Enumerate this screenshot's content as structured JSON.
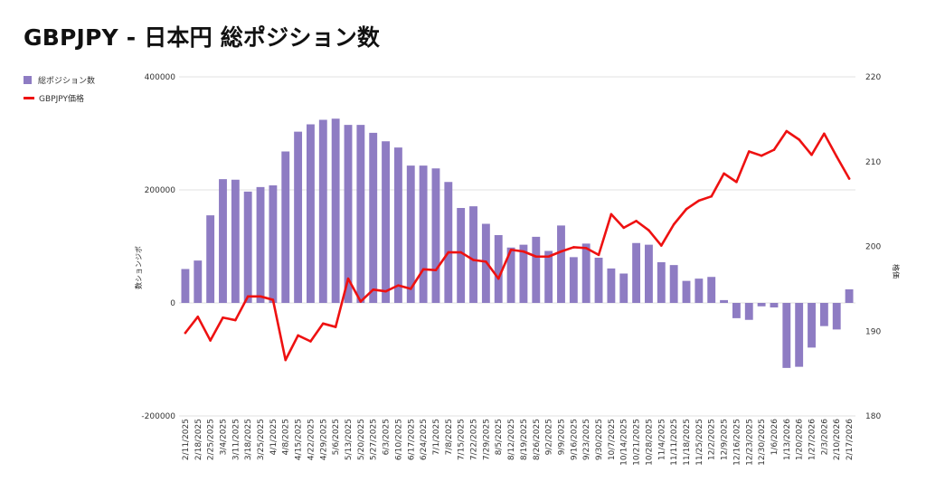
{
  "title": "GBPJPY - 日本円 総ポジション数",
  "legend": {
    "bar_label": "総ポジション数",
    "line_label": "GBPJPY価格"
  },
  "colors": {
    "bar": "#8e7cc3",
    "line": "#ee1111",
    "grid": "#e2e2e2"
  },
  "chart_data": {
    "type": "bar",
    "title": "GBPJPY - 日本円 総ポジション数",
    "categories": [
      "2/11/2025",
      "2/18/2025",
      "2/25/2025",
      "3/4/2025",
      "3/11/2025",
      "3/18/2025",
      "3/25/2025",
      "4/1/2025",
      "4/8/2025",
      "4/15/2025",
      "4/22/2025",
      "4/29/2025",
      "5/6/2025",
      "5/13/2025",
      "5/20/2025",
      "5/27/2025",
      "6/3/2025",
      "6/10/2025",
      "6/17/2025",
      "6/24/2025",
      "7/1/2025",
      "7/8/2025",
      "7/15/2025",
      "7/22/2025",
      "7/29/2025",
      "8/5/2025",
      "8/12/2025",
      "8/19/2025",
      "8/26/2025",
      "9/2/2025",
      "9/9/2025",
      "9/16/2025",
      "9/23/2025",
      "9/30/2025",
      "10/7/2025",
      "10/14/2025",
      "10/21/2025",
      "10/28/2025",
      "11/4/2025",
      "11/11/2025",
      "11/18/2025",
      "11/25/2025",
      "12/2/2025",
      "12/9/2025",
      "12/16/2025",
      "12/23/2025",
      "12/30/2025",
      "1/6/2026",
      "1/13/2026",
      "1/20/2026",
      "1/27/2026",
      "2/3/2026",
      "2/10/2026",
      "2/17/2026"
    ],
    "tick_labels": [
      "2/11/2025",
      "2/18/2025",
      "2/25/2025",
      "3/4/2025",
      "3/11/2025",
      "3/18/2025",
      "3/25/2025",
      "4/1/2025",
      "4/8/2025",
      "4/15/2025",
      "4/22/2025",
      "4/29/2025",
      "5/6/2025",
      "5/13/2025",
      "5/20/2025",
      "5/27/2025",
      "6/3/2025",
      "6/10/2025",
      "6/17/2025",
      "6/24/2025",
      "7/1/2025",
      "7/8/2025",
      "7/15/2025",
      "7/22/2025",
      "7/29/2025",
      "8/5/2025",
      "8/12/2025",
      "8/19/2025",
      "8/26/2025",
      "9/2/2025",
      "9/9/2025",
      "9/16/2025",
      "9/23/2025",
      "9/30/2025",
      "10/7/2025",
      "10/14/2025",
      "10/21/2025",
      "10/28/2025",
      "11/4/2025",
      "11/11/2025",
      "11/18/2025",
      "11/25/2025",
      "12/2/2025",
      "12/9/2025",
      "12/16/2025",
      "12/23/2025",
      "12/30/2025",
      "1/6/2026",
      "1/13/2026",
      "1/20/2026",
      "1/27/2026",
      "2/3/2026",
      "2/10/2026",
      "2/17/2026"
    ],
    "series": [
      {
        "name": "総ポジション数",
        "type": "bar",
        "axis": "left",
        "values": [
          60000,
          75000,
          155000,
          219000,
          218000,
          197000,
          205000,
          208000,
          268000,
          303000,
          316000,
          324000,
          326000,
          315000,
          315000,
          301000,
          286000,
          275000,
          243000,
          243000,
          238000,
          214000,
          168000,
          171000,
          140000,
          120000,
          98000,
          103000,
          117000,
          92000,
          137000,
          81000,
          105000,
          80000,
          61000,
          52000,
          106000,
          103000,
          72000,
          67000,
          39000,
          43000,
          46000,
          5000,
          -27000,
          -30000,
          -6000,
          -8000,
          -115000,
          -113000,
          -79000,
          -41000,
          -47000,
          24000
        ]
      },
      {
        "name": "GBPJPY価格",
        "type": "line",
        "axis": "right",
        "values": [
          189.8,
          191.7,
          188.9,
          191.6,
          191.3,
          194.1,
          194.1,
          193.7,
          186.6,
          189.5,
          188.8,
          190.9,
          190.5,
          196.2,
          193.5,
          194.9,
          194.7,
          195.4,
          195.0,
          197.3,
          197.2,
          199.3,
          199.3,
          198.4,
          198.2,
          196.2,
          199.6,
          199.4,
          198.8,
          198.8,
          199.4,
          199.9,
          199.8,
          199.0,
          203.8,
          202.2,
          203.0,
          201.9,
          200.1,
          202.6,
          204.4,
          205.4,
          205.9,
          208.6,
          207.6,
          211.2,
          210.7,
          211.4,
          213.6,
          212.6,
          210.8,
          213.3,
          210.6,
          208.0
        ]
      }
    ],
    "y_left": {
      "label": "数ションジポ",
      "min": -200000,
      "max": 400000,
      "ticks": [
        "-200000",
        "0",
        "200000",
        "400000"
      ]
    },
    "y_right": {
      "label": "格価",
      "min": 180,
      "max": 220,
      "ticks": [
        "180",
        "190",
        "200",
        "210",
        "220"
      ]
    },
    "grid": true,
    "legend_position": "top-left"
  }
}
